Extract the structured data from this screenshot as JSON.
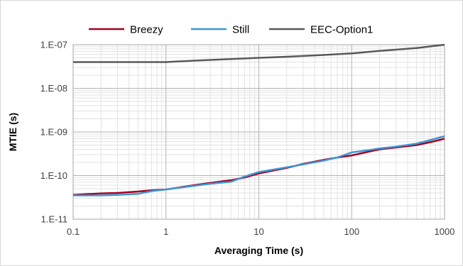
{
  "chart_data": {
    "type": "line",
    "title": "",
    "xlabel": "Averaging Time (s)",
    "ylabel": "MTIE (s)",
    "x_scale": "log",
    "y_scale": "log",
    "xlim": [
      0.1,
      1000
    ],
    "ylim": [
      1e-11,
      1e-07
    ],
    "x_ticks": [
      0.1,
      1,
      10,
      100,
      1000
    ],
    "x_tick_labels": [
      "0.1",
      "1",
      "10",
      "100",
      "1000"
    ],
    "y_ticks": [
      1e-11,
      1e-10,
      1e-09,
      1e-08,
      1e-07
    ],
    "y_tick_labels": [
      "1.E-11",
      "1.E-10",
      "1.E-09",
      "1.E-08",
      "1.E-07"
    ],
    "grid": true,
    "legend_position": "top",
    "series": [
      {
        "name": "Breezy",
        "color": "#a50021",
        "x": [
          0.1,
          0.2,
          0.3,
          0.5,
          0.7,
          1,
          2,
          3,
          5,
          7,
          10,
          20,
          30,
          50,
          70,
          100,
          150,
          200,
          300,
          500,
          700,
          1000
        ],
        "y": [
          3.6e-11,
          3.9e-11,
          4e-11,
          4.3e-11,
          4.6e-11,
          4.8e-11,
          6e-11,
          6.8e-11,
          7.8e-11,
          9e-11,
          1.12e-10,
          1.5e-10,
          1.85e-10,
          2.3e-10,
          2.6e-10,
          2.9e-10,
          3.5e-10,
          4e-10,
          4.4e-10,
          5e-10,
          5.8e-10,
          7e-10
        ]
      },
      {
        "name": "Still",
        "color": "#3e97d4",
        "x": [
          0.1,
          0.2,
          0.3,
          0.5,
          0.7,
          1,
          2,
          3,
          5,
          7,
          10,
          20,
          30,
          50,
          70,
          100,
          150,
          200,
          300,
          500,
          700,
          1000
        ],
        "y": [
          3.5e-11,
          3.5e-11,
          3.6e-11,
          3.8e-11,
          4.4e-11,
          4.8e-11,
          5.8e-11,
          6.5e-11,
          7.2e-11,
          9.5e-11,
          1.2e-10,
          1.55e-10,
          1.8e-10,
          2.2e-10,
          2.6e-10,
          3.4e-10,
          3.8e-10,
          4.2e-10,
          4.6e-10,
          5.4e-10,
          6.5e-10,
          8e-10
        ]
      },
      {
        "name": "EEC-Option1",
        "color": "#595959",
        "x": [
          0.1,
          0.2,
          0.5,
          1,
          2,
          5,
          10,
          20,
          50,
          100,
          200,
          500,
          1000
        ],
        "y": [
          4e-08,
          4e-08,
          4e-08,
          4e-08,
          4.3e-08,
          4.7e-08,
          5e-08,
          5.3e-08,
          5.8e-08,
          6.3e-08,
          7.2e-08,
          8.4e-08,
          1e-07
        ]
      }
    ]
  }
}
